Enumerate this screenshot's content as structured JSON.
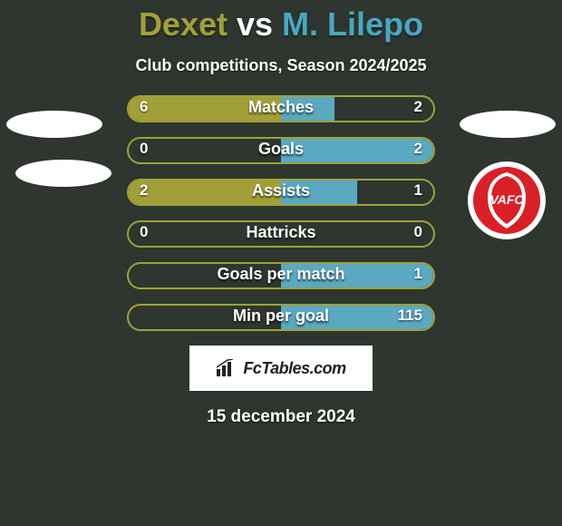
{
  "background_color": "#2e362f",
  "title": {
    "player_a": "Dexet",
    "vs": " vs ",
    "player_b": "M. Lilepo",
    "color_a": "#a0a03c",
    "color_b": "#4aa7c0",
    "fontsize": 36
  },
  "subtitle": "Club competitions, Season 2024/2025",
  "side_a": {
    "color": "#a1a038",
    "fill_color": "#a1a038",
    "border_color": "#a1a038"
  },
  "side_b": {
    "color": "#5aa9c0",
    "fill_color": "#5aa9c0",
    "border_color": "#5aa9c0"
  },
  "track": {
    "border_color": "#a1a038",
    "height": 30,
    "radius": 16
  },
  "rows": [
    {
      "label": "Matches",
      "a": "6",
      "b": "2",
      "fill_a_pct": 100,
      "fill_b_pct": 35
    },
    {
      "label": "Goals",
      "a": "0",
      "b": "2",
      "fill_a_pct": 0,
      "fill_b_pct": 100
    },
    {
      "label": "Assists",
      "a": "2",
      "b": "1",
      "fill_a_pct": 100,
      "fill_b_pct": 50
    },
    {
      "label": "Hattricks",
      "a": "0",
      "b": "0",
      "fill_a_pct": 0,
      "fill_b_pct": 0
    },
    {
      "label": "Goals per match",
      "a": "",
      "b": "1",
      "fill_a_pct": 0,
      "fill_b_pct": 100
    },
    {
      "label": "Min per goal",
      "a": "",
      "b": "115",
      "fill_a_pct": 0,
      "fill_b_pct": 100
    }
  ],
  "logos": {
    "left_ellipse_color": "#ffffff",
    "right_ellipse_color": "#ffffff",
    "vafc": {
      "bg": "#ffffff",
      "inner": "#d92027",
      "text": "VAFC",
      "text_color": "#ffffff"
    }
  },
  "watermark": {
    "text": "FcTables.com",
    "bg": "#ffffff",
    "icon_color": "#222222"
  },
  "date": "15 december 2024"
}
